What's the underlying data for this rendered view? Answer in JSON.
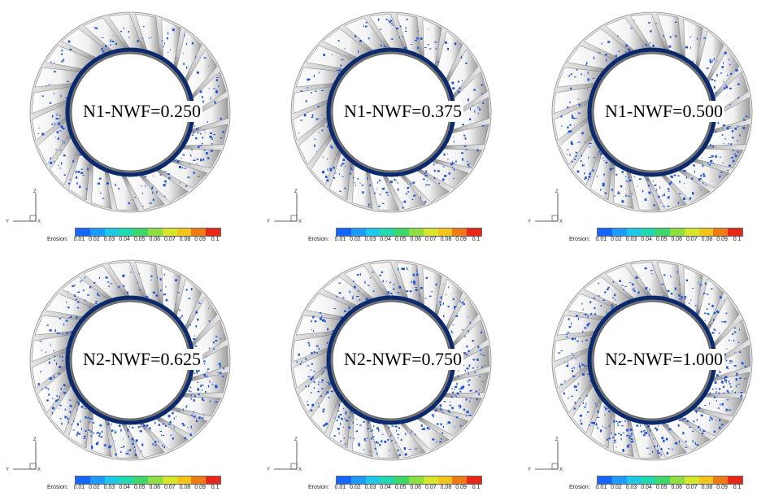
{
  "panels": [
    {
      "label": "N1-NWF=0.250"
    },
    {
      "label": "N1-NWF=0.375"
    },
    {
      "label": "N1-NWF=0.500"
    },
    {
      "label": "N2-NWF=0.625"
    },
    {
      "label": "N2-NWF=0.750"
    },
    {
      "label": "N2-NWF=1.000"
    }
  ],
  "legend": {
    "title": "Erosion:",
    "ticks": [
      "0.01",
      "0.02",
      "0.03",
      "0.04",
      "0.05",
      "0.06",
      "0.07",
      "0.08",
      "0.09",
      "0.1"
    ],
    "colors": [
      "#1565ff",
      "#1e9bff",
      "#20c8e8",
      "#22d8b0",
      "#3fd66a",
      "#8ee042",
      "#d6e52e",
      "#f2c41c",
      "#f07a14",
      "#e8261a"
    ]
  },
  "axes": {
    "vertical": "Z",
    "horizontal": "Y"
  },
  "colors": {
    "erosion_spot": "#1f55d6",
    "hub_dark": "#0b2a6e",
    "blade_light": "#f2f2f2",
    "blade_dark": "#9a9a9a"
  }
}
